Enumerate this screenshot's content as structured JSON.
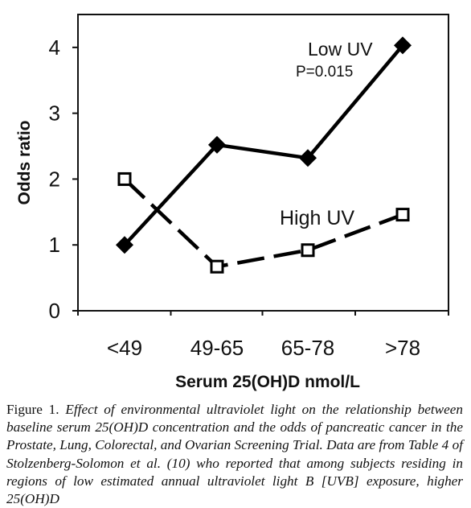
{
  "chart_data": {
    "type": "line",
    "xlabel": "Serum 25(OH)D nmol/L",
    "ylabel": "Odds ratio",
    "categories": [
      "<49",
      "49-65",
      "65-78",
      ">78"
    ],
    "ylim": [
      0,
      4.5
    ],
    "yticks": [
      "0",
      "1",
      "2",
      "3",
      "4"
    ],
    "grid": false,
    "series": [
      {
        "name": "Low UV",
        "annotation": "P=0.015",
        "values": [
          1.0,
          2.52,
          2.32,
          4.03
        ],
        "marker": "diamond-filled",
        "line": "solid",
        "color": "#000000"
      },
      {
        "name": "High UV",
        "values": [
          2.0,
          0.67,
          0.92,
          1.46
        ],
        "marker": "square-open",
        "line": "dashed",
        "color": "#000000"
      }
    ]
  },
  "caption": {
    "lead": "Figure 1. ",
    "body": "Effect of environmental ultraviolet light on the relationship between baseline serum 25(OH)D concentration and the odds of pancreatic cancer in the Prostate, Lung, Colorectal, and Ovarian Screening Trial. Data are from Table 4 of Stolzenberg-Solomon et al. (10) who reported that among subjects residing in regions of low estimated annual ultraviolet light B [UVB] exposure, higher 25(OH)D"
  }
}
